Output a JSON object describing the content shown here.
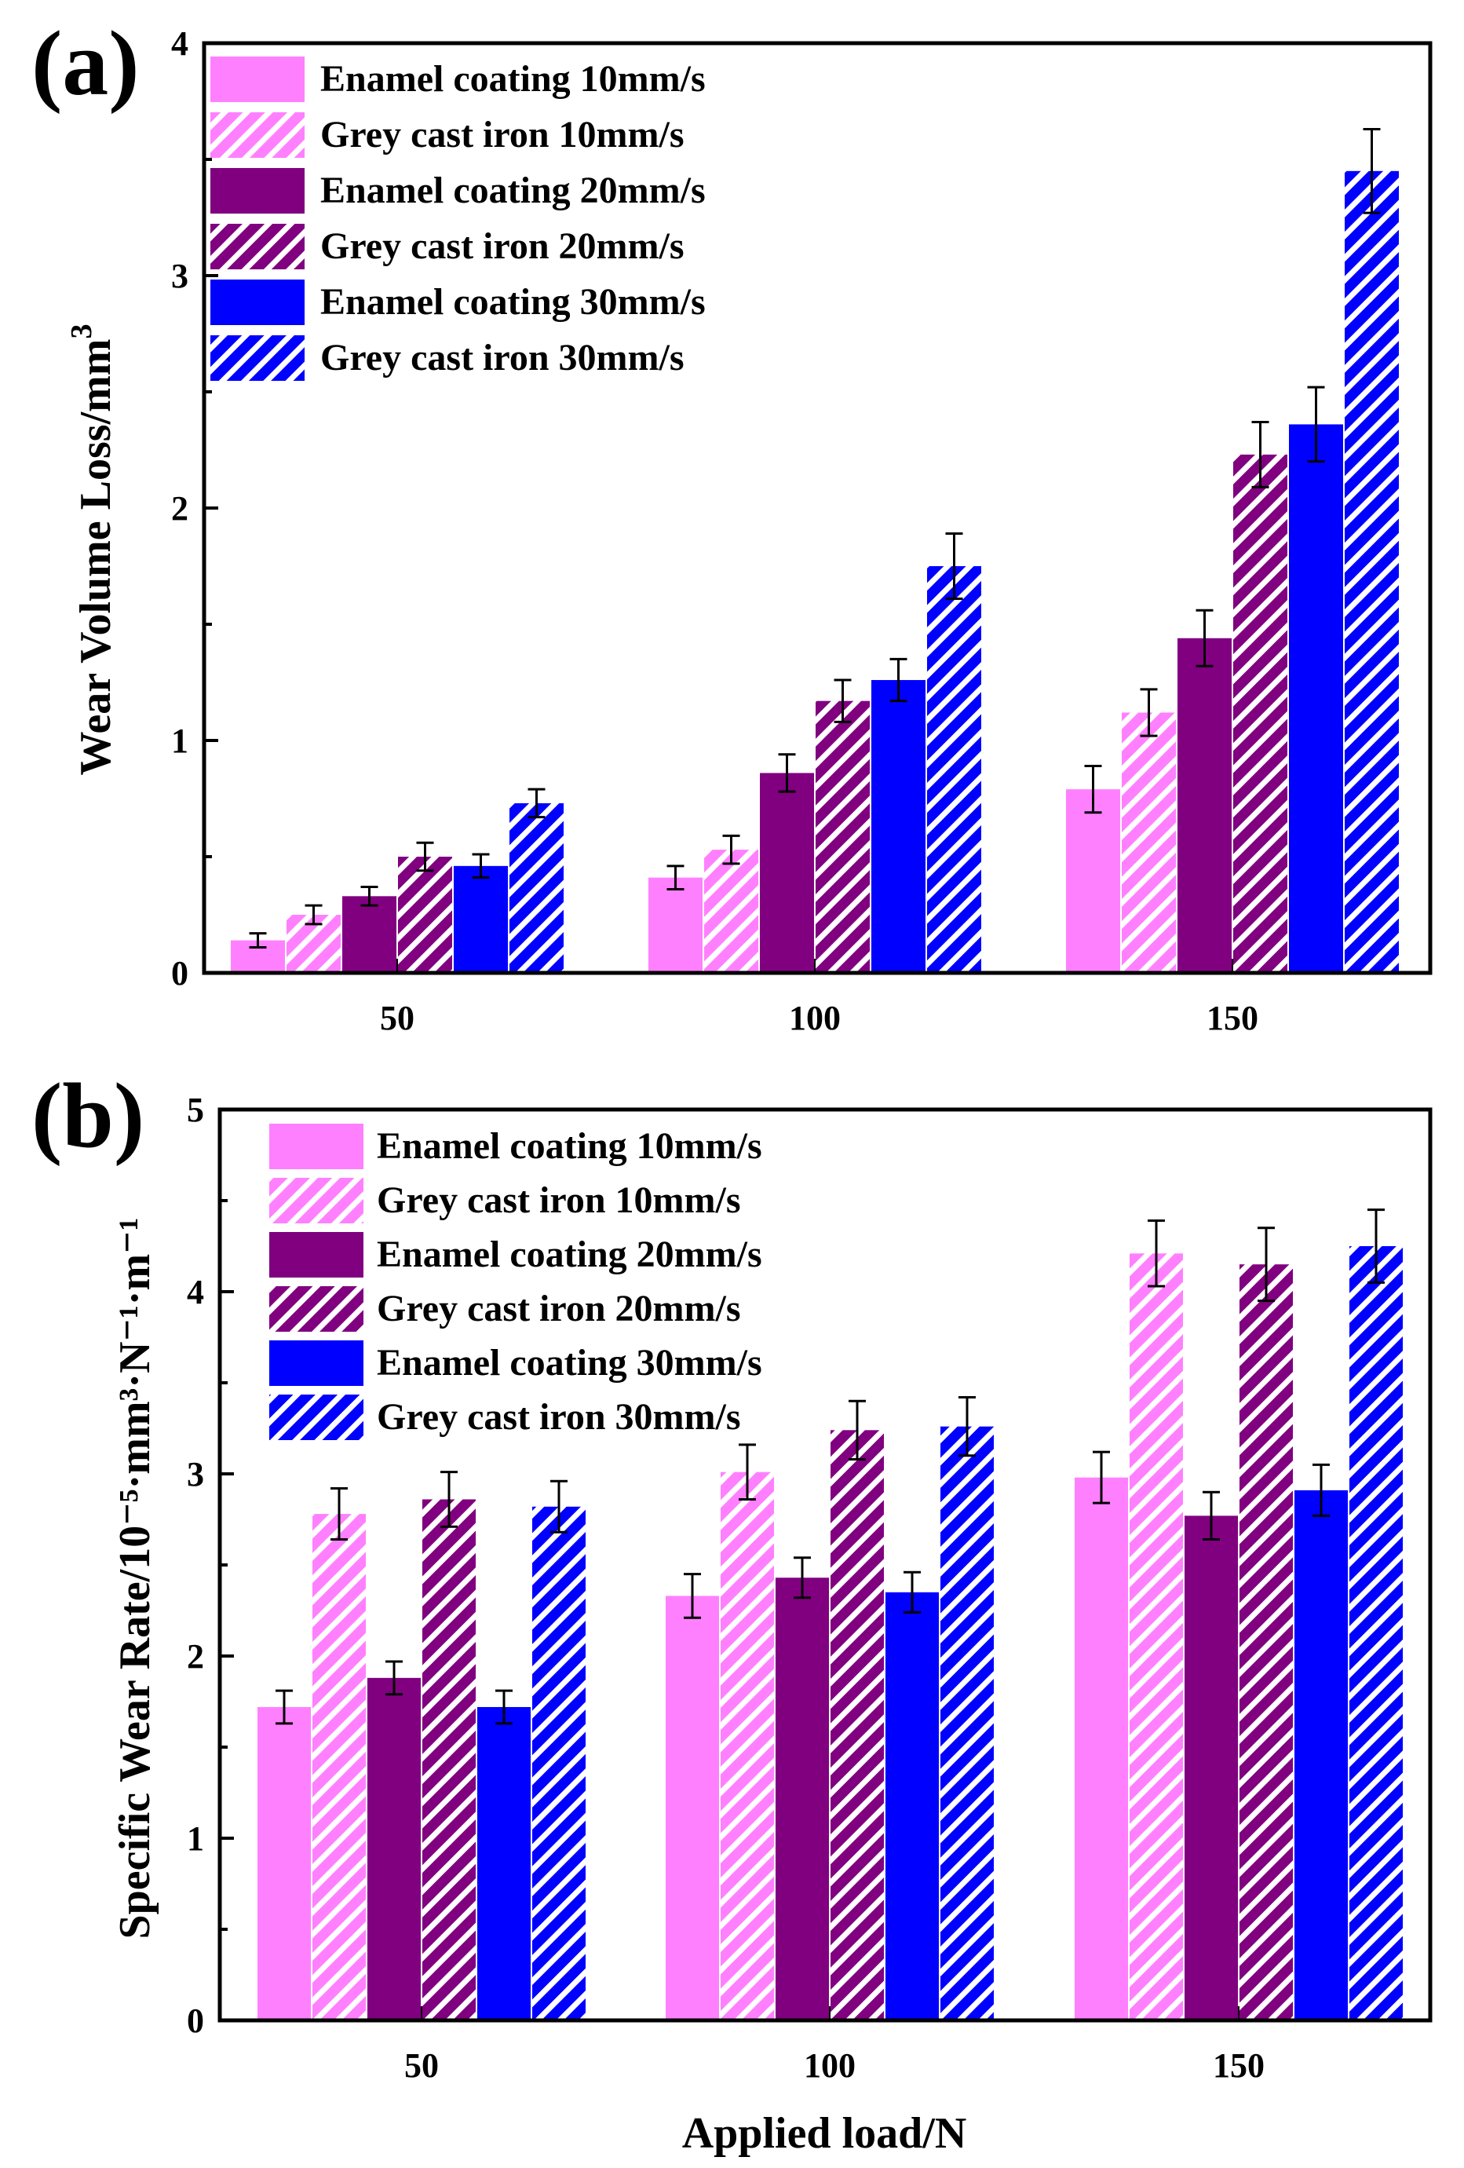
{
  "figure": {
    "x_axis_title": "Applied load/N"
  },
  "colors": {
    "pink": "#FF80FF",
    "purple": "#800080",
    "blue": "#0000FF",
    "hatch": "#FFFFFF",
    "axis": "#000000"
  },
  "chart_data": [
    {
      "type": "bar",
      "panel_label": "(a)",
      "title": "",
      "xlabel": "",
      "ylabel": "Wear Volume Loss/mm",
      "ylabel_superscript": "3",
      "ylim": [
        0,
        4
      ],
      "yticks": [
        "0",
        "1",
        "2",
        "3",
        "4"
      ],
      "categories": [
        "50",
        "100",
        "150"
      ],
      "legend_position": "top-left",
      "series": [
        {
          "name": "Enamel coating 10mm/s",
          "color": "pink",
          "hatched": false,
          "values": [
            0.14,
            0.41,
            0.79
          ],
          "errors": [
            0.03,
            0.05,
            0.1
          ]
        },
        {
          "name": "Grey cast iron 10mm/s",
          "color": "pink",
          "hatched": true,
          "values": [
            0.25,
            0.53,
            1.12
          ],
          "errors": [
            0.04,
            0.06,
            0.1
          ]
        },
        {
          "name": "Enamel coating 20mm/s",
          "color": "purple",
          "hatched": false,
          "values": [
            0.33,
            0.86,
            1.44
          ],
          "errors": [
            0.04,
            0.08,
            0.12
          ]
        },
        {
          "name": "Grey cast iron 20mm/s",
          "color": "purple",
          "hatched": true,
          "values": [
            0.5,
            1.17,
            2.23
          ],
          "errors": [
            0.06,
            0.09,
            0.14
          ]
        },
        {
          "name": "Enamel coating 30mm/s",
          "color": "blue",
          "hatched": false,
          "values": [
            0.46,
            1.26,
            2.36
          ],
          "errors": [
            0.05,
            0.09,
            0.16
          ]
        },
        {
          "name": "Grey cast iron 30mm/s",
          "color": "blue",
          "hatched": true,
          "values": [
            0.73,
            1.75,
            3.45
          ],
          "errors": [
            0.06,
            0.14,
            0.18
          ]
        }
      ]
    },
    {
      "type": "bar",
      "panel_label": "(b)",
      "title": "",
      "xlabel": "Applied load/N",
      "ylabel": "Specific Wear Rate/10⁻⁵·mm³·N⁻¹·m⁻¹",
      "ylim": [
        0,
        5
      ],
      "yticks": [
        "0",
        "1",
        "2",
        "3",
        "4",
        "5"
      ],
      "categories": [
        "50",
        "100",
        "150"
      ],
      "legend_position": "top-left",
      "series": [
        {
          "name": "Enamel coating 10mm/s",
          "color": "pink",
          "hatched": false,
          "values": [
            1.72,
            2.33,
            2.98
          ],
          "errors": [
            0.09,
            0.12,
            0.14
          ]
        },
        {
          "name": "Grey cast iron 10mm/s",
          "color": "pink",
          "hatched": true,
          "values": [
            2.78,
            3.01,
            4.21
          ],
          "errors": [
            0.14,
            0.15,
            0.18
          ]
        },
        {
          "name": "Enamel coating 20mm/s",
          "color": "purple",
          "hatched": false,
          "values": [
            1.88,
            2.43,
            2.77
          ],
          "errors": [
            0.09,
            0.11,
            0.13
          ]
        },
        {
          "name": "Grey cast iron 20mm/s",
          "color": "purple",
          "hatched": true,
          "values": [
            2.86,
            3.24,
            4.15
          ],
          "errors": [
            0.15,
            0.16,
            0.2
          ]
        },
        {
          "name": "Enamel coating 30mm/s",
          "color": "blue",
          "hatched": false,
          "values": [
            1.72,
            2.35,
            2.91
          ],
          "errors": [
            0.09,
            0.11,
            0.14
          ]
        },
        {
          "name": "Grey cast iron 30mm/s",
          "color": "blue",
          "hatched": true,
          "values": [
            2.82,
            3.26,
            4.25
          ],
          "errors": [
            0.14,
            0.16,
            0.2
          ]
        }
      ]
    }
  ]
}
